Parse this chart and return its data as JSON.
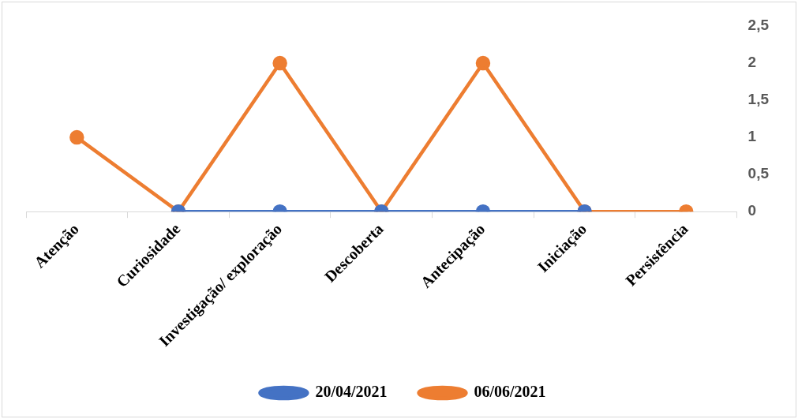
{
  "chart_data": {
    "type": "line",
    "categories": [
      "Atenção",
      "Curiosidade",
      "Investigação/ exploração",
      "Descoberta",
      "Antecipação",
      "Iniciação",
      "Persistência"
    ],
    "series": [
      {
        "name": "20/04/2021",
        "color": "#4472c4",
        "values": [
          null,
          0,
          0,
          0,
          0,
          0,
          null
        ]
      },
      {
        "name": "06/06/2021",
        "color": "#ed7d31",
        "values": [
          1,
          0,
          2,
          0,
          2,
          0,
          0
        ]
      }
    ],
    "ylim": [
      0,
      2.5
    ],
    "yticks": [
      0,
      {
        "value": 0.5,
        "label": "0,5"
      },
      1,
      {
        "value": 1.5,
        "label": "1,5"
      },
      2,
      {
        "value": 2.5,
        "label": "2,5"
      }
    ],
    "grid": false,
    "legend": "bottom",
    "marker": "circle",
    "line_style": "solid"
  }
}
